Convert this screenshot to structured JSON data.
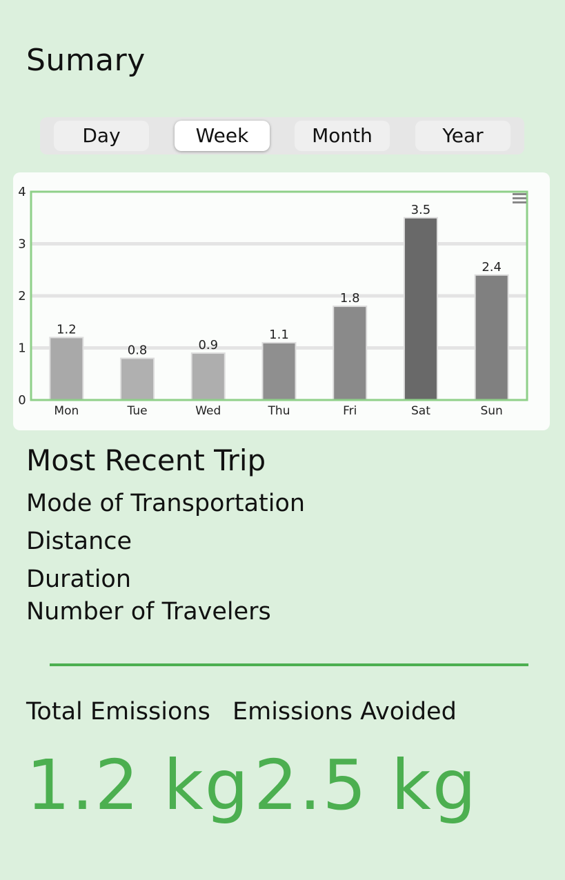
{
  "header": {
    "title": "Sumary"
  },
  "period_tabs": [
    {
      "label": "Day",
      "active": false
    },
    {
      "label": "Week",
      "active": true
    },
    {
      "label": "Month",
      "active": false
    },
    {
      "label": "Year",
      "active": false
    }
  ],
  "chart_data": {
    "type": "bar",
    "categories": [
      "Mon",
      "Tue",
      "Wed",
      "Thu",
      "Fri",
      "Sat",
      "Sun"
    ],
    "values": [
      1.2,
      0.8,
      0.9,
      1.1,
      1.8,
      3.5,
      2.4
    ],
    "data_labels": [
      "1.2",
      "0.8",
      "0.9",
      "1.1",
      "1.8",
      "3.5",
      "2.4"
    ],
    "ylim": [
      0,
      4
    ],
    "yticks": [
      "0",
      "1",
      "2",
      "3",
      "4"
    ],
    "grid": true,
    "bar_colors": [
      "#a9a9a9",
      "#b0b0b0",
      "#aeaeae",
      "#8f8f8f",
      "#8a8a8a",
      "#696969",
      "#808080"
    ],
    "frame_color": "#8fd089",
    "menu_icon": "hamburger-icon"
  },
  "recent_trip": {
    "heading": "Most Recent Trip",
    "fields": [
      "Mode of Transportation",
      "Distance",
      "Duration",
      "Number of Travelers"
    ]
  },
  "emissions": {
    "total_label": "Total Emissions",
    "avoided_label": "Emissions Avoided",
    "total_value": "1.2 kg",
    "avoided_value": "2.5 kg",
    "accent_color": "#4caf50"
  }
}
